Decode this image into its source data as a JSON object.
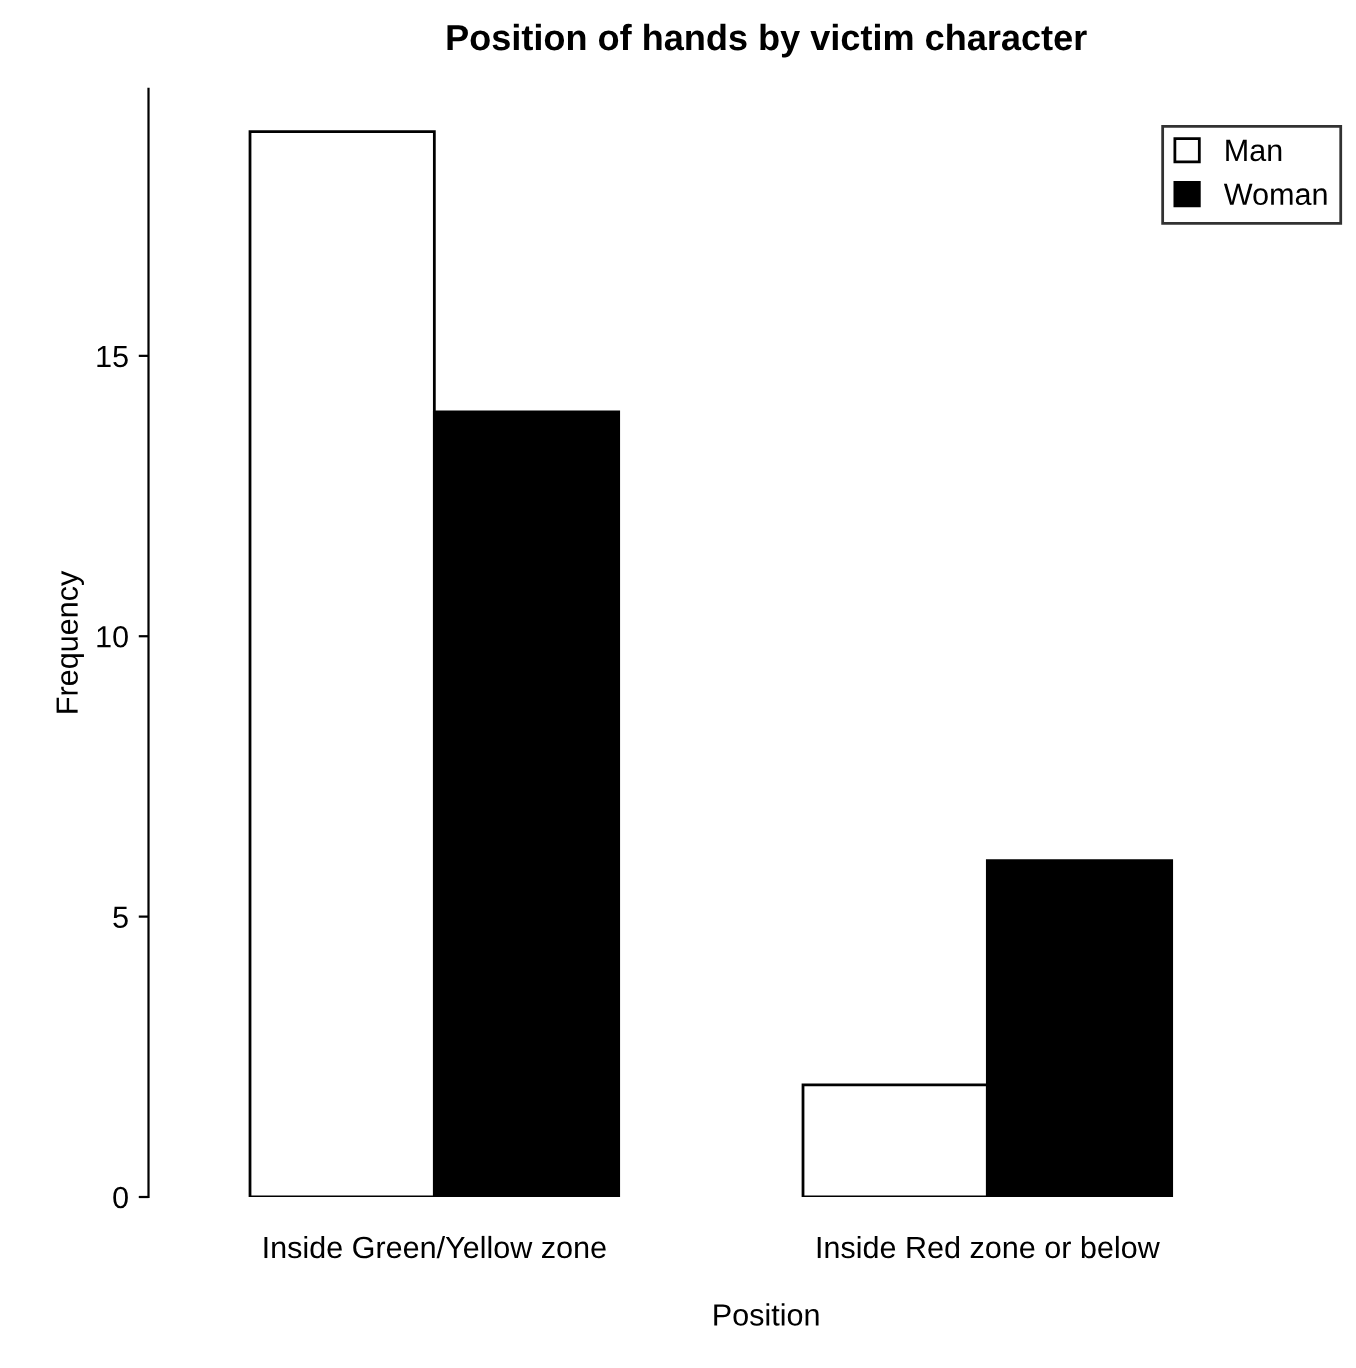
{
  "chart_data": {
    "type": "bar",
    "title": "Position of hands by victim character",
    "xlabel": "Position",
    "ylabel": "Frequency",
    "categories": [
      "Inside Green/Yellow zone",
      "Inside Red zone or below"
    ],
    "series": [
      {
        "name": "Man",
        "color": "#ffffff",
        "values": [
          19,
          2
        ]
      },
      {
        "name": "Woman",
        "color": "#000000",
        "values": [
          14,
          6
        ]
      }
    ],
    "ylim": [
      0,
      19.76
    ],
    "yticks": [
      0,
      5,
      10,
      15
    ],
    "legend": "top right",
    "grid": false
  }
}
